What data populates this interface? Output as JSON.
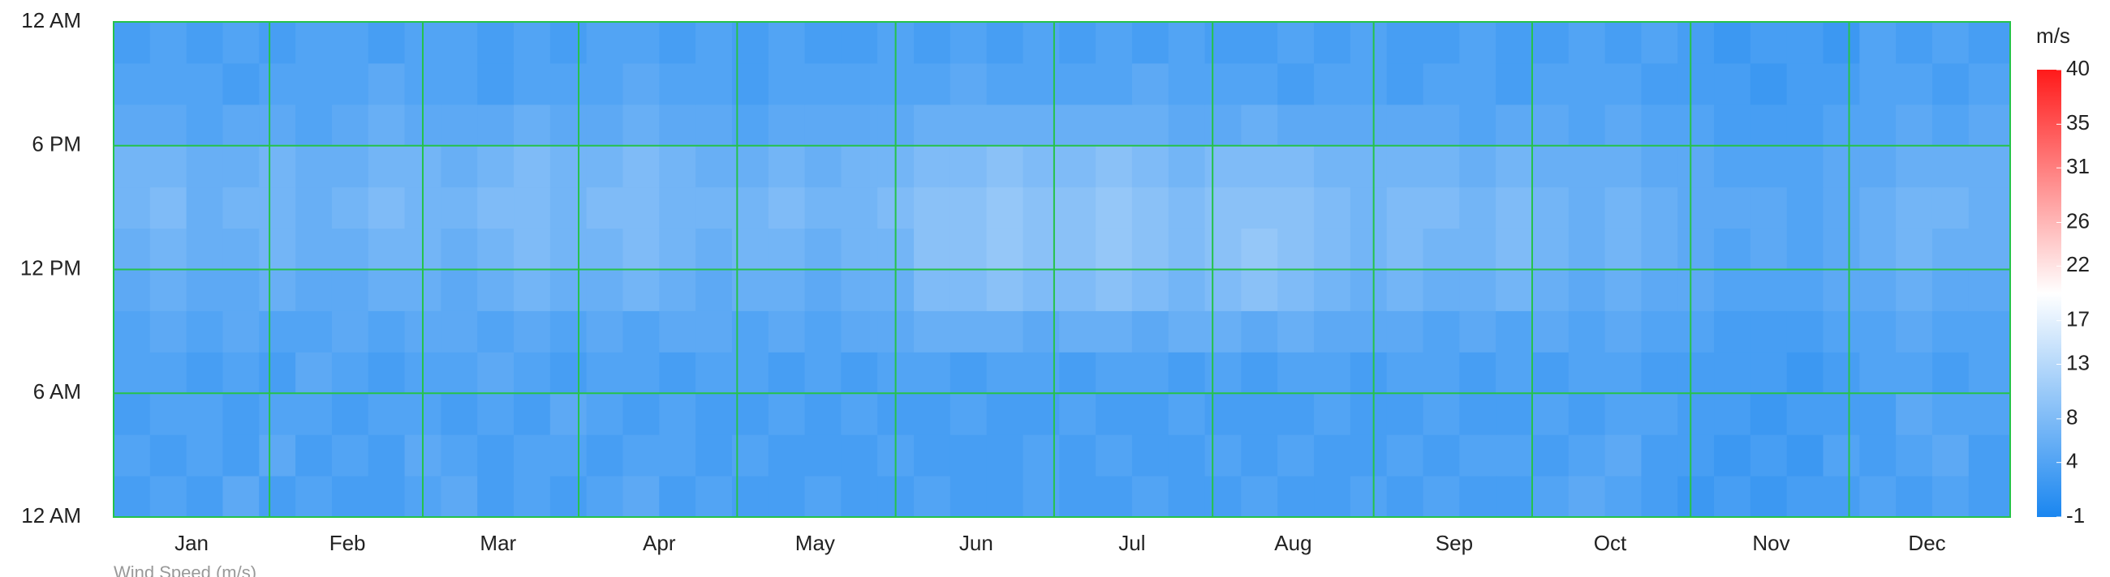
{
  "chart_data": {
    "type": "heatmap",
    "xlabel": "Wind Speed (m/s)",
    "x": [
      0,
      7,
      14,
      21,
      28,
      35,
      42,
      49,
      56,
      63,
      70,
      77,
      84,
      91,
      98,
      105,
      112,
      119,
      126,
      133,
      140,
      147,
      154,
      161,
      168,
      175,
      182,
      189,
      196,
      203,
      210,
      217,
      224,
      231,
      238,
      245,
      252,
      259,
      266,
      273,
      280,
      287,
      294,
      301,
      308,
      315,
      322,
      329,
      336,
      343,
      350,
      357
    ],
    "y": [
      0,
      2,
      4,
      6,
      8,
      10,
      12,
      14,
      16,
      18,
      20,
      22
    ],
    "xlim": [
      0,
      365
    ],
    "ylim": [
      0,
      24
    ],
    "xticks": [
      {
        "value": 15,
        "label": "Jan"
      },
      {
        "value": 45,
        "label": "Feb"
      },
      {
        "value": 74,
        "label": "Mar"
      },
      {
        "value": 105,
        "label": "Apr"
      },
      {
        "value": 135,
        "label": "May"
      },
      {
        "value": 166,
        "label": "Jun"
      },
      {
        "value": 196,
        "label": "Jul"
      },
      {
        "value": 227,
        "label": "Aug"
      },
      {
        "value": 258,
        "label": "Sep"
      },
      {
        "value": 288,
        "label": "Oct"
      },
      {
        "value": 319,
        "label": "Nov"
      },
      {
        "value": 349,
        "label": "Dec"
      }
    ],
    "yticks": [
      {
        "value": 0,
        "label": "12 AM"
      },
      {
        "value": 6,
        "label": "6 AM"
      },
      {
        "value": 12,
        "label": "12 PM"
      },
      {
        "value": 18,
        "label": "6 PM"
      },
      {
        "value": 24,
        "label": "12 AM"
      }
    ],
    "grid": true,
    "grid_color": "#25c24a",
    "values": [
      [
        3,
        4,
        3,
        5,
        3,
        4,
        3,
        3,
        4,
        5,
        3,
        4,
        3,
        4,
        5,
        3,
        4,
        3,
        3,
        4,
        3,
        3,
        4,
        3,
        3,
        4,
        3,
        3,
        4,
        3,
        3,
        4,
        3,
        3,
        4,
        3,
        4,
        3,
        3,
        4,
        5,
        4,
        3,
        2,
        3,
        2,
        3,
        3,
        4,
        3,
        4,
        3
      ],
      [
        4,
        3,
        4,
        3,
        5,
        3,
        4,
        3,
        5,
        4,
        3,
        4,
        4,
        3,
        4,
        4,
        3,
        4,
        3,
        3,
        3,
        4,
        3,
        3,
        3,
        4,
        3,
        4,
        3,
        3,
        4,
        3,
        4,
        3,
        3,
        4,
        3,
        4,
        4,
        3,
        4,
        5,
        3,
        3,
        2,
        3,
        2,
        4,
        3,
        4,
        5,
        3
      ],
      [
        3,
        4,
        4,
        3,
        4,
        4,
        3,
        4,
        4,
        3,
        4,
        3,
        5,
        4,
        3,
        4,
        3,
        3,
        4,
        3,
        4,
        3,
        3,
        4,
        3,
        3,
        4,
        3,
        3,
        4,
        3,
        3,
        3,
        4,
        3,
        3,
        4,
        3,
        3,
        4,
        3,
        4,
        4,
        3,
        3,
        2,
        3,
        3,
        3,
        5,
        4,
        4
      ],
      [
        4,
        4,
        3,
        4,
        3,
        5,
        4,
        3,
        4,
        4,
        5,
        4,
        3,
        4,
        4,
        3,
        4,
        4,
        3,
        4,
        3,
        4,
        4,
        3,
        4,
        4,
        3,
        4,
        4,
        3,
        4,
        3,
        4,
        4,
        3,
        4,
        4,
        3,
        4,
        3,
        4,
        4,
        3,
        3,
        3,
        3,
        2,
        3,
        4,
        4,
        3,
        4
      ],
      [
        4,
        5,
        4,
        5,
        4,
        4,
        5,
        4,
        5,
        5,
        4,
        5,
        4,
        5,
        4,
        5,
        5,
        4,
        5,
        4,
        5,
        5,
        6,
        6,
        6,
        5,
        6,
        6,
        5,
        6,
        6,
        5,
        6,
        5,
        5,
        5,
        4,
        5,
        4,
        5,
        4,
        5,
        4,
        4,
        3,
        3,
        3,
        4,
        4,
        5,
        4,
        4
      ],
      [
        5,
        6,
        5,
        5,
        6,
        5,
        5,
        6,
        6,
        5,
        6,
        7,
        6,
        6,
        7,
        6,
        5,
        6,
        6,
        5,
        6,
        6,
        8,
        8,
        9,
        8,
        8,
        9,
        8,
        7,
        8,
        9,
        8,
        7,
        6,
        7,
        6,
        6,
        7,
        6,
        5,
        6,
        5,
        5,
        4,
        4,
        4,
        5,
        5,
        6,
        5,
        5
      ],
      [
        6,
        7,
        6,
        6,
        7,
        6,
        6,
        7,
        7,
        6,
        7,
        8,
        7,
        7,
        8,
        7,
        6,
        7,
        7,
        6,
        7,
        7,
        9,
        9,
        10,
        9,
        9,
        10,
        9,
        8,
        9,
        10,
        9,
        8,
        7,
        8,
        7,
        7,
        8,
        7,
        6,
        7,
        6,
        5,
        4,
        5,
        4,
        5,
        6,
        7,
        6,
        6
      ],
      [
        7,
        8,
        6,
        7,
        7,
        6,
        7,
        8,
        7,
        7,
        8,
        8,
        7,
        8,
        8,
        7,
        7,
        7,
        8,
        7,
        7,
        8,
        9,
        9,
        10,
        9,
        9,
        10,
        9,
        8,
        9,
        9,
        9,
        8,
        7,
        8,
        8,
        7,
        8,
        7,
        6,
        7,
        6,
        5,
        5,
        5,
        4,
        5,
        6,
        7,
        7,
        6
      ],
      [
        7,
        7,
        6,
        6,
        7,
        6,
        6,
        7,
        7,
        6,
        7,
        8,
        7,
        7,
        8,
        7,
        6,
        6,
        7,
        6,
        7,
        7,
        8,
        8,
        9,
        8,
        8,
        9,
        8,
        7,
        8,
        8,
        8,
        7,
        7,
        7,
        7,
        6,
        7,
        6,
        6,
        6,
        5,
        5,
        4,
        4,
        4,
        5,
        5,
        6,
        6,
        6
      ],
      [
        5,
        5,
        4,
        5,
        5,
        4,
        5,
        6,
        5,
        5,
        5,
        6,
        5,
        5,
        6,
        5,
        5,
        4,
        5,
        5,
        5,
        5,
        6,
        6,
        6,
        6,
        6,
        6,
        6,
        5,
        5,
        6,
        5,
        5,
        5,
        5,
        5,
        4,
        5,
        5,
        4,
        5,
        4,
        4,
        3,
        3,
        3,
        4,
        4,
        5,
        4,
        5
      ],
      [
        4,
        4,
        4,
        3,
        4,
        4,
        4,
        5,
        4,
        4,
        3,
        4,
        4,
        4,
        5,
        4,
        4,
        3,
        4,
        4,
        4,
        4,
        4,
        5,
        4,
        4,
        4,
        4,
        5,
        4,
        4,
        4,
        3,
        4,
        4,
        3,
        4,
        4,
        3,
        4,
        4,
        4,
        3,
        3,
        3,
        2,
        3,
        3,
        4,
        4,
        3,
        4
      ],
      [
        3,
        4,
        3,
        4,
        3,
        4,
        4,
        3,
        4,
        4,
        3,
        4,
        3,
        4,
        4,
        3,
        4,
        3,
        4,
        3,
        3,
        4,
        3,
        4,
        3,
        4,
        3,
        4,
        3,
        4,
        3,
        3,
        4,
        3,
        4,
        3,
        3,
        4,
        3,
        3,
        4,
        3,
        4,
        3,
        2,
        3,
        3,
        2,
        4,
        3,
        4,
        3
      ]
    ],
    "colorbar": {
      "label": "m/s",
      "lim": [
        -1,
        40
      ],
      "ticks": [
        -1,
        4,
        8,
        13,
        17,
        22,
        26,
        31,
        35,
        40
      ],
      "colors": [
        "#1a86f0",
        "#ffffff",
        "#ff1a1a"
      ]
    }
  }
}
